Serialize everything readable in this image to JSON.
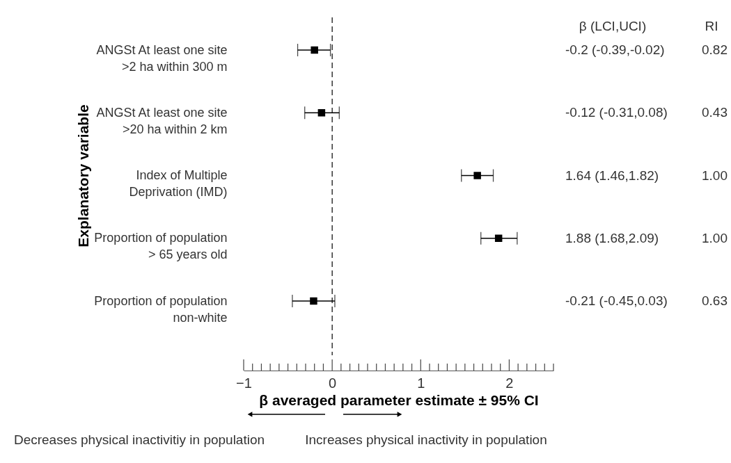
{
  "chart_data": {
    "type": "scatter",
    "xlabel": "β averaged parameter estimate ± 95% CI",
    "ylabel": "Explanatory variable",
    "categories": [
      "ANGSt At least one site\n>2 ha within 300 m",
      "ANGSt At least one site\n>20 ha within 2 km",
      "Index of Multiple\nDeprivation (IMD)",
      "Proportion of population\n> 65 years old",
      "Proportion of population\nnon-white"
    ],
    "values": [
      -0.2,
      -0.12,
      1.64,
      1.88,
      -0.21
    ],
    "errors": [
      [
        -0.39,
        -0.02
      ],
      [
        -0.31,
        0.08
      ],
      [
        1.46,
        1.82
      ],
      [
        1.68,
        2.09
      ],
      [
        -0.45,
        0.03
      ]
    ],
    "color": "#000000",
    "orientation": "horizontal",
    "marker": "square",
    "xlim": [
      -1,
      2.5
    ],
    "xticks": [
      {
        "value": -1,
        "label": "−1"
      },
      {
        "value": -0.9,
        "label": null
      },
      {
        "value": -0.8,
        "label": null
      },
      {
        "value": -0.7,
        "label": null
      },
      {
        "value": -0.6,
        "label": null
      },
      {
        "value": -0.5,
        "label": null
      },
      {
        "value": -0.4,
        "label": null
      },
      {
        "value": -0.3,
        "label": null
      },
      {
        "value": -0.2,
        "label": null
      },
      {
        "value": -0.1,
        "label": null
      },
      {
        "value": 0,
        "label": "0"
      },
      {
        "value": 0.1,
        "label": null
      },
      {
        "value": 0.2,
        "label": null
      },
      {
        "value": 0.3,
        "label": null
      },
      {
        "value": 0.4,
        "label": null
      },
      {
        "value": 0.5,
        "label": null
      },
      {
        "value": 0.6,
        "label": null
      },
      {
        "value": 0.7,
        "label": null
      },
      {
        "value": 0.8,
        "label": null
      },
      {
        "value": 0.9,
        "label": null
      },
      {
        "value": 1,
        "label": "1"
      },
      {
        "value": 1.1,
        "label": null
      },
      {
        "value": 1.2,
        "label": null
      },
      {
        "value": 1.3,
        "label": null
      },
      {
        "value": 1.4,
        "label": null
      },
      {
        "value": 1.5,
        "label": null
      },
      {
        "value": 1.6,
        "label": null
      },
      {
        "value": 1.7,
        "label": null
      },
      {
        "value": 1.8,
        "label": null
      },
      {
        "value": 1.9,
        "label": null
      },
      {
        "value": 2,
        "label": "2"
      },
      {
        "value": 2.1,
        "label": null
      },
      {
        "value": 2.2,
        "label": null
      },
      {
        "value": 2.3,
        "label": null
      },
      {
        "value": 2.4,
        "label": null
      },
      {
        "value": 2.5,
        "label": null
      }
    ],
    "ref_lines": [
      {
        "axis": "x",
        "value": 0,
        "line_style": "dashed",
        "color": "#000000"
      }
    ],
    "grid": false,
    "annotations": [
      "β (LCI,UCI)",
      "RI",
      "-0.2 (-0.39,-0.02)",
      "-0.12 (-0.31,0.08)",
      "1.64 (1.46,1.82)",
      "1.88 (1.68,2.09)",
      "-0.21 (-0.45,0.03)",
      "0.82",
      "0.43",
      "1.00",
      "1.00",
      "0.63",
      "Decreases physical inactivitiy in population",
      "Increases physical inactivity in population"
    ]
  }
}
